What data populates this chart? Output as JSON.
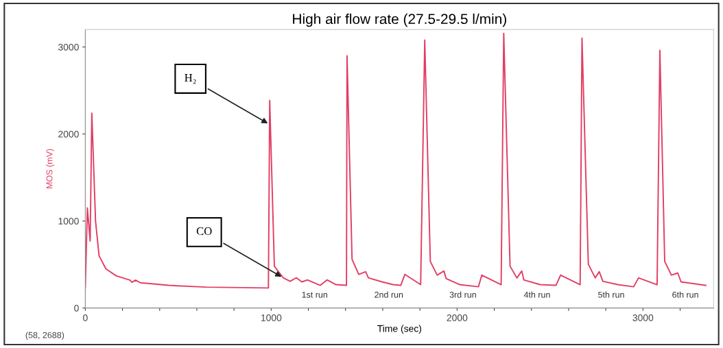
{
  "chart_data": {
    "type": "line",
    "title": "High air flow rate (27.5-29.5 l/min)",
    "xlabel": "Time (sec)",
    "ylabel": "MOS (mV)",
    "x": [
      0,
      11,
      26,
      35,
      55,
      74,
      111,
      166,
      240,
      251,
      270,
      296,
      450,
      650,
      985,
      992,
      1017,
      1035,
      1065,
      1102,
      1135,
      1165,
      1195,
      1264,
      1301,
      1349,
      1405,
      1408,
      1435,
      1471,
      1508,
      1523,
      1597,
      1656,
      1697,
      1719,
      1804,
      1826,
      1856,
      1893,
      1929,
      1941,
      2015,
      2115,
      2133,
      2237,
      2251,
      2285,
      2322,
      2348,
      2359,
      2447,
      2532,
      2557,
      2662,
      2672,
      2706,
      2743,
      2765,
      2784,
      2865,
      2950,
      2976,
      3076,
      3091,
      3117,
      3153,
      3187,
      3205,
      3338
    ],
    "series": [
      {
        "color": "#e23e64",
        "values": [
          230,
          1150,
          770,
          2240,
          1000,
          600,
          450,
          370,
          320,
          295,
          320,
          290,
          260,
          240,
          230,
          2386,
          480,
          430,
          347,
          307,
          347,
          300,
          323,
          260,
          323,
          268,
          260,
          2898,
          559,
          386,
          417,
          346,
          300,
          268,
          260,
          386,
          268,
          3079,
          535,
          378,
          425,
          339,
          268,
          244,
          378,
          268,
          3157,
          480,
          346,
          425,
          323,
          268,
          260,
          378,
          268,
          3102,
          504,
          346,
          417,
          307,
          268,
          244,
          346,
          268,
          2961,
          535,
          378,
          402,
          300,
          260
        ]
      }
    ],
    "xlim": [
      0,
      3380
    ],
    "ylim": [
      0,
      3200
    ],
    "xticks": [
      0,
      {
        "value": 200,
        "label": null
      },
      {
        "value": 400,
        "label": null
      },
      {
        "value": 600,
        "label": null
      },
      {
        "value": 800,
        "label": null
      },
      1000,
      {
        "value": 1200,
        "label": null
      },
      {
        "value": 1400,
        "label": null
      },
      {
        "value": 1600,
        "label": null
      },
      {
        "value": 1800,
        "label": null
      },
      2000,
      {
        "value": 2200,
        "label": null
      },
      {
        "value": 2400,
        "label": null
      },
      {
        "value": 2600,
        "label": null
      },
      {
        "value": 2800,
        "label": null
      },
      3000,
      {
        "value": 3200,
        "label": null
      }
    ],
    "yticks": [
      0,
      1000,
      2000,
      3000
    ],
    "annotations": [
      {
        "text": "H₂",
        "x": 991,
        "y": 2110
      },
      {
        "text": "CO",
        "x": 1065,
        "y": 347
      },
      "(58, 2688)",
      "1st run",
      "2nd run",
      "3rd run",
      "4th run",
      "5th run",
      "6th run"
    ],
    "grid": false,
    "legend": false
  }
}
